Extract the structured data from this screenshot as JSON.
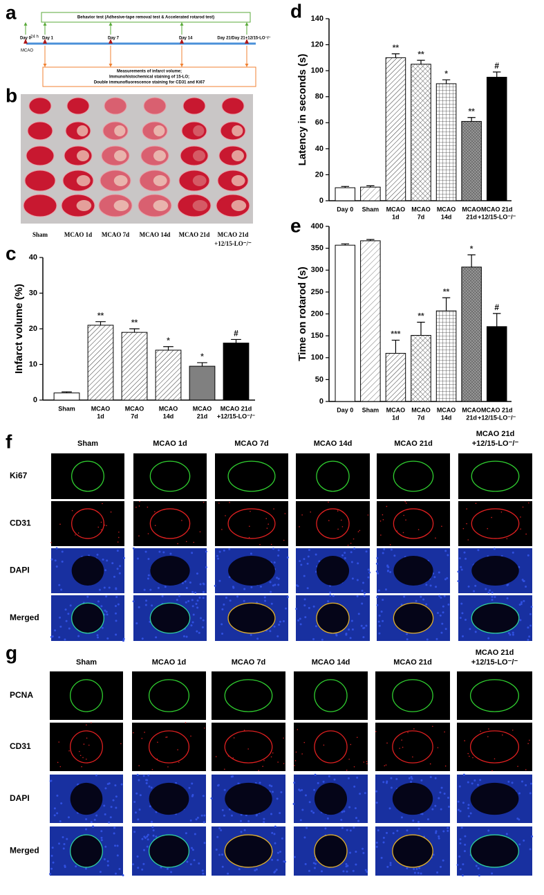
{
  "figure": {
    "a": {
      "panel_label": "a",
      "behavior": "Behavior test (Adhesive-tape removal test & Accelerated rotarod test)",
      "days": [
        "Day 0",
        "Day 1",
        "Day 7",
        "Day 14",
        "Day 21/Day 21+12/15-LO⁻/⁻"
      ],
      "interval": "24 h",
      "event": "MCAO",
      "measurements": [
        "Measurements of infarct volume;",
        "Immunohistochemical staining of 15-LO;",
        "Double immunofluorescence staining for CD31 and Ki67"
      ]
    },
    "b": {
      "panel_label": "b",
      "groups": [
        [
          "Sham"
        ],
        [
          "MCAO 1d"
        ],
        [
          "MCAO 7d"
        ],
        [
          "MCAO 14d"
        ],
        [
          "MCAO 21d"
        ],
        [
          "MCAO 21d",
          "+12/15-LO⁻/⁻"
        ]
      ]
    },
    "f": {
      "panel_label": "f",
      "columns": [
        [
          "Sham"
        ],
        [
          "MCAO 1d"
        ],
        [
          "MCAO 7d"
        ],
        [
          "MCAO 14d"
        ],
        [
          "MCAO 21d"
        ],
        [
          "MCAO 21d",
          "+12/15-LO⁻/⁻"
        ]
      ],
      "rows": [
        "Ki67",
        "CD31",
        "DAPI",
        "Merged"
      ]
    },
    "g": {
      "panel_label": "g",
      "columns": [
        [
          "Sham"
        ],
        [
          "MCAO 1d"
        ],
        [
          "MCAO 7d"
        ],
        [
          "MCAO 14d"
        ],
        [
          "MCAO 21d"
        ],
        [
          "MCAO 21d",
          "+12/15-LO⁻/⁻"
        ]
      ],
      "rows": [
        "PCNA",
        "CD31",
        "DAPI",
        "Merged"
      ]
    }
  },
  "chart_data": [
    {
      "type": "bar",
      "panel_label": "c",
      "ylabel": "Infarct volume (%)",
      "categories": [
        [
          "Sham"
        ],
        [
          "MCAO",
          "1d"
        ],
        [
          "MCAO",
          "7d"
        ],
        [
          "MCAO",
          "14d"
        ],
        [
          "MCAO",
          "21d"
        ],
        [
          "MCAO 21d",
          "+12/15-LO⁻/⁻"
        ]
      ],
      "values": [
        2,
        21,
        19,
        14,
        9.5,
        16
      ],
      "errors": [
        0.3,
        1,
        1,
        1,
        1,
        1
      ],
      "annotations": [
        null,
        "**",
        "**",
        "*",
        "*",
        "#"
      ],
      "colors": [
        "#ffffff",
        "#ffffff",
        "#ffffff",
        "#ffffff",
        "#808080",
        "#000000"
      ],
      "patterns": [
        "none",
        "diagonal",
        "diagonal",
        "diagonal",
        "none",
        "none"
      ],
      "ylim": [
        0,
        40
      ],
      "yticks": [
        0,
        10,
        20,
        30,
        40
      ]
    },
    {
      "type": "bar",
      "panel_label": "d",
      "ylabel": "Latency in seconds (s)",
      "categories": [
        [
          "Day 0"
        ],
        [
          "Sham"
        ],
        [
          "MCAO",
          "1d"
        ],
        [
          "MCAO",
          "7d"
        ],
        [
          "MCAO",
          "14d"
        ],
        [
          "MCAO",
          "21d"
        ],
        [
          "MCAO 21d",
          "+12/15-LO⁻/⁻"
        ]
      ],
      "values": [
        10,
        10.5,
        110,
        105,
        90,
        61,
        95
      ],
      "errors": [
        1,
        1,
        3,
        3,
        3,
        3,
        4
      ],
      "annotations": [
        null,
        null,
        "**",
        "**",
        "*",
        "**",
        "#"
      ],
      "colors": [
        "#ffffff",
        "#ffffff",
        "#ffffff",
        "#ffffff",
        "#ffffff",
        "#9a9a9a",
        "#000000"
      ],
      "patterns": [
        "none",
        "diagonal-wide",
        "diagonal",
        "crosshatch",
        "grid",
        "dense-grid",
        "none"
      ],
      "ylim": [
        0,
        140
      ],
      "yticks": [
        0,
        20,
        40,
        60,
        80,
        100,
        120,
        140
      ]
    },
    {
      "type": "bar",
      "panel_label": "e",
      "ylabel": "Time on rotarod (s)",
      "categories": [
        [
          "Day 0"
        ],
        [
          "Sham"
        ],
        [
          "MCAO",
          "1d"
        ],
        [
          "MCAO",
          "7d"
        ],
        [
          "MCAO",
          "14d"
        ],
        [
          "MCAO",
          "21d"
        ],
        [
          "MCAO 21d",
          "+12/15-LO⁻/⁻"
        ]
      ],
      "values": [
        357,
        367,
        110,
        151,
        207,
        307,
        171
      ],
      "errors": [
        3,
        3,
        30,
        30,
        30,
        28,
        30
      ],
      "annotations": [
        null,
        null,
        "***",
        "**",
        "**",
        "*",
        "#"
      ],
      "colors": [
        "#ffffff",
        "#ffffff",
        "#ffffff",
        "#ffffff",
        "#ffffff",
        "#9a9a9a",
        "#000000"
      ],
      "patterns": [
        "none",
        "diagonal-wide",
        "diagonal",
        "crosshatch",
        "grid",
        "dense-grid",
        "none"
      ],
      "ylim": [
        0,
        400
      ],
      "yticks": [
        0,
        50,
        100,
        150,
        200,
        250,
        300,
        350,
        400
      ]
    }
  ]
}
